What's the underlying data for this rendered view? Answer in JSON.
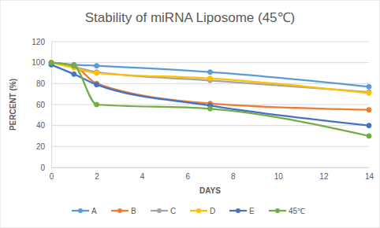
{
  "chart_data": {
    "type": "line",
    "title": "Stability of miRNA Liposome (45℃)",
    "x_label": "DAYS",
    "y_label": "PERCENT (%)",
    "x": [
      0,
      1,
      2,
      7,
      14
    ],
    "series": [
      {
        "name": "A",
        "color": "#5b9bd5",
        "values": [
          100,
          98,
          97,
          91,
          77
        ]
      },
      {
        "name": "B",
        "color": "#ed7d31",
        "values": [
          100,
          97,
          80,
          61,
          55
        ]
      },
      {
        "name": "C",
        "color": "#a5a5a5",
        "values": [
          100,
          96,
          91,
          83,
          72
        ]
      },
      {
        "name": "D",
        "color": "#ffc000",
        "values": [
          100,
          95,
          90,
          85,
          71
        ]
      },
      {
        "name": "E",
        "color": "#4472c4",
        "values": [
          98,
          89,
          79,
          59,
          40
        ]
      },
      {
        "name": "45℃",
        "color": "#70ad47",
        "values": [
          100,
          97,
          60,
          56,
          30
        ]
      }
    ],
    "xlim": [
      0,
      14
    ],
    "xticks": [
      0,
      2,
      4,
      6,
      8,
      10,
      12,
      14
    ],
    "ylim": [
      0,
      120
    ],
    "yticks": [
      0,
      20,
      40,
      60,
      80,
      100,
      120
    ],
    "grid": true,
    "legend": "bottom",
    "marker": "circle",
    "line_style": "smooth"
  }
}
